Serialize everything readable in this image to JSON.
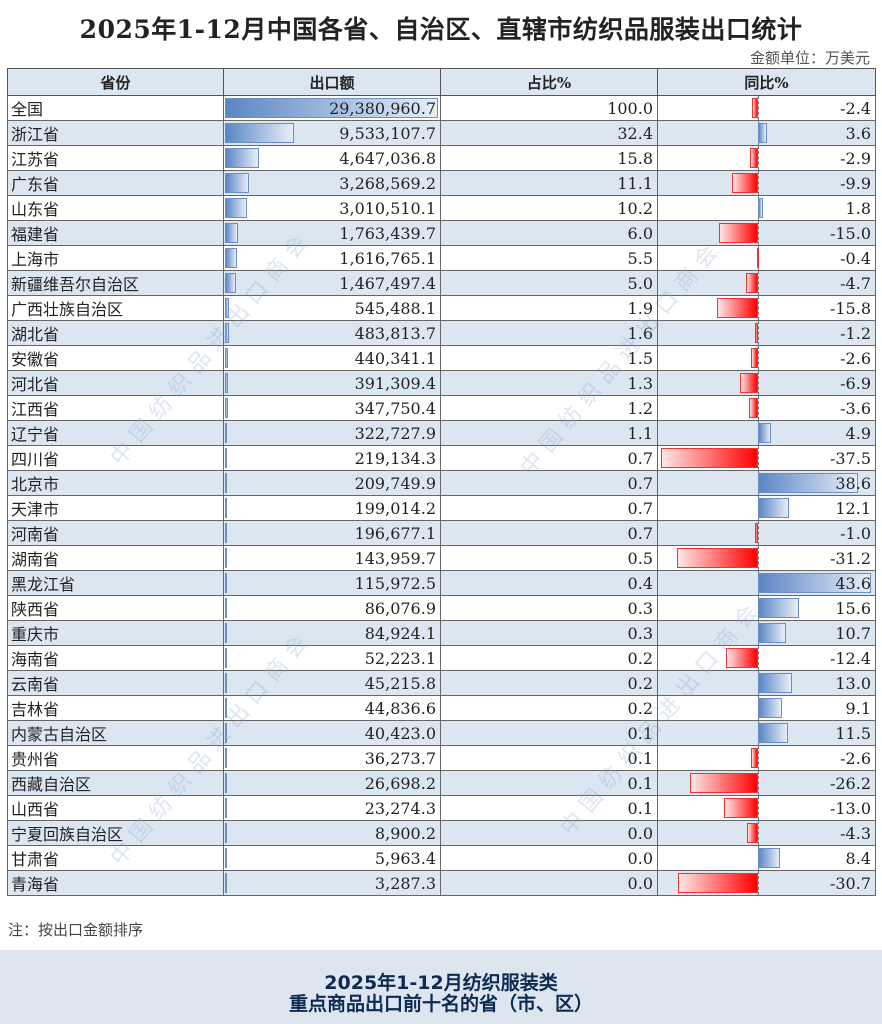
{
  "title": "2025年1-12月中国各省、自治区、直辖市纺织品服装出口统计",
  "unit": "金额单位：万美元",
  "headers": [
    "省份",
    "出口额",
    "占比%",
    "同比%"
  ],
  "colors": {
    "header_bg": "#dce6f1",
    "positive_bar": "#5b86c4",
    "negative_bar": "#ff0000",
    "footer_bg": "#dde5ee",
    "footer_text": "#0d2a52"
  },
  "rows": [
    {
      "name": "全国",
      "amount": "29,380,960.7",
      "amount_value": 29380960.7,
      "share": "100.0",
      "yoy": "-2.4",
      "yoy_value": -2.4
    },
    {
      "name": "浙江省",
      "amount": "9,533,107.7",
      "amount_value": 9533107.7,
      "share": "32.4",
      "yoy": "3.6",
      "yoy_value": 3.6
    },
    {
      "name": "江苏省",
      "amount": "4,647,036.8",
      "amount_value": 4647036.8,
      "share": "15.8",
      "yoy": "-2.9",
      "yoy_value": -2.9
    },
    {
      "name": "广东省",
      "amount": "3,268,569.2",
      "amount_value": 3268569.2,
      "share": "11.1",
      "yoy": "-9.9",
      "yoy_value": -9.9
    },
    {
      "name": "山东省",
      "amount": "3,010,510.1",
      "amount_value": 3010510.1,
      "share": "10.2",
      "yoy": "1.8",
      "yoy_value": 1.8
    },
    {
      "name": "福建省",
      "amount": "1,763,439.7",
      "amount_value": 1763439.7,
      "share": "6.0",
      "yoy": "-15.0",
      "yoy_value": -15.0
    },
    {
      "name": "上海市",
      "amount": "1,616,765.1",
      "amount_value": 1616765.1,
      "share": "5.5",
      "yoy": "-0.4",
      "yoy_value": -0.4
    },
    {
      "name": "新疆维吾尔自治区",
      "amount": "1,467,497.4",
      "amount_value": 1467497.4,
      "share": "5.0",
      "yoy": "-4.7",
      "yoy_value": -4.7
    },
    {
      "name": "广西壮族自治区",
      "amount": "545,488.1",
      "amount_value": 545488.1,
      "share": "1.9",
      "yoy": "-15.8",
      "yoy_value": -15.8
    },
    {
      "name": "湖北省",
      "amount": "483,813.7",
      "amount_value": 483813.7,
      "share": "1.6",
      "yoy": "-1.2",
      "yoy_value": -1.2
    },
    {
      "name": "安徽省",
      "amount": "440,341.1",
      "amount_value": 440341.1,
      "share": "1.5",
      "yoy": "-2.6",
      "yoy_value": -2.6
    },
    {
      "name": "河北省",
      "amount": "391,309.4",
      "amount_value": 391309.4,
      "share": "1.3",
      "yoy": "-6.9",
      "yoy_value": -6.9
    },
    {
      "name": "江西省",
      "amount": "347,750.4",
      "amount_value": 347750.4,
      "share": "1.2",
      "yoy": "-3.6",
      "yoy_value": -3.6
    },
    {
      "name": "辽宁省",
      "amount": "322,727.9",
      "amount_value": 322727.9,
      "share": "1.1",
      "yoy": "4.9",
      "yoy_value": 4.9
    },
    {
      "name": "四川省",
      "amount": "219,134.3",
      "amount_value": 219134.3,
      "share": "0.7",
      "yoy": "-37.5",
      "yoy_value": -37.5
    },
    {
      "name": "北京市",
      "amount": "209,749.9",
      "amount_value": 209749.9,
      "share": "0.7",
      "yoy": "38.6",
      "yoy_value": 38.6
    },
    {
      "name": "天津市",
      "amount": "199,014.2",
      "amount_value": 199014.2,
      "share": "0.7",
      "yoy": "12.1",
      "yoy_value": 12.1
    },
    {
      "name": "河南省",
      "amount": "196,677.1",
      "amount_value": 196677.1,
      "share": "0.7",
      "yoy": "-1.0",
      "yoy_value": -1.0
    },
    {
      "name": "湖南省",
      "amount": "143,959.7",
      "amount_value": 143959.7,
      "share": "0.5",
      "yoy": "-31.2",
      "yoy_value": -31.2
    },
    {
      "name": "黑龙江省",
      "amount": "115,972.5",
      "amount_value": 115972.5,
      "share": "0.4",
      "yoy": "43.6",
      "yoy_value": 43.6
    },
    {
      "name": "陕西省",
      "amount": "86,076.9",
      "amount_value": 86076.9,
      "share": "0.3",
      "yoy": "15.6",
      "yoy_value": 15.6
    },
    {
      "name": "重庆市",
      "amount": "84,924.1",
      "amount_value": 84924.1,
      "share": "0.3",
      "yoy": "10.7",
      "yoy_value": 10.7
    },
    {
      "name": "海南省",
      "amount": "52,223.1",
      "amount_value": 52223.1,
      "share": "0.2",
      "yoy": "-12.4",
      "yoy_value": -12.4
    },
    {
      "name": "云南省",
      "amount": "45,215.8",
      "amount_value": 45215.8,
      "share": "0.2",
      "yoy": "13.0",
      "yoy_value": 13.0
    },
    {
      "name": "吉林省",
      "amount": "44,836.6",
      "amount_value": 44836.6,
      "share": "0.2",
      "yoy": "9.1",
      "yoy_value": 9.1
    },
    {
      "name": "内蒙古自治区",
      "amount": "40,423.0",
      "amount_value": 40423.0,
      "share": "0.1",
      "yoy": "11.5",
      "yoy_value": 11.5
    },
    {
      "name": "贵州省",
      "amount": "36,273.7",
      "amount_value": 36273.7,
      "share": "0.1",
      "yoy": "-2.6",
      "yoy_value": -2.6
    },
    {
      "name": "西藏自治区",
      "amount": "26,698.2",
      "amount_value": 26698.2,
      "share": "0.1",
      "yoy": "-26.2",
      "yoy_value": -26.2
    },
    {
      "name": "山西省",
      "amount": "23,274.3",
      "amount_value": 23274.3,
      "share": "0.1",
      "yoy": "-13.0",
      "yoy_value": -13.0
    },
    {
      "name": "宁夏回族自治区",
      "amount": "8,900.2",
      "amount_value": 8900.2,
      "share": "0.0",
      "yoy": "-4.3",
      "yoy_value": -4.3
    },
    {
      "name": "甘肃省",
      "amount": "5,963.4",
      "amount_value": 5963.4,
      "share": "0.0",
      "yoy": "8.4",
      "yoy_value": 8.4
    },
    {
      "name": "青海省",
      "amount": "3,287.3",
      "amount_value": 3287.3,
      "share": "0.0",
      "yoy": "-30.7",
      "yoy_value": -30.7
    }
  ],
  "note": "注：按出口金额排序",
  "watermark": "中国纺织品进出口商会",
  "footer": {
    "line1": "2025年1-12月纺织服装类",
    "line2": "重点商品出口前十名的省（市、区）"
  }
}
